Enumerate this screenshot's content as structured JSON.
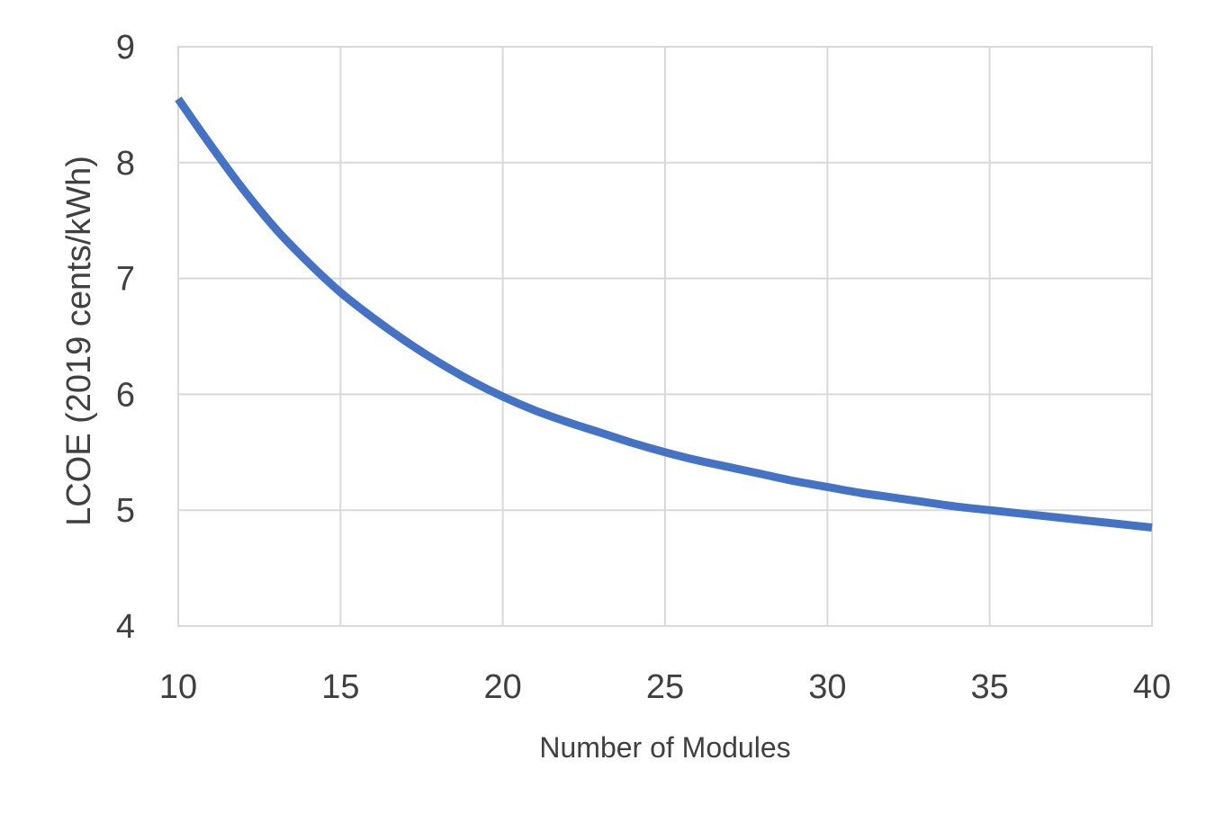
{
  "chart_data": {
    "type": "line",
    "title": "",
    "xlabel": "Number of Modules",
    "ylabel": "LCOE (2019 cents/kWh)",
    "xlim": [
      10,
      40
    ],
    "ylim": [
      4,
      9
    ],
    "x_ticks": [
      10,
      15,
      20,
      25,
      30,
      35,
      40
    ],
    "y_ticks": [
      4,
      5,
      6,
      7,
      8,
      9
    ],
    "grid": true,
    "legend": "none",
    "series": [
      {
        "color": "#4472c4",
        "x": [
          10,
          11,
          12,
          13,
          14,
          15,
          16,
          17,
          18,
          19,
          20,
          21,
          22,
          23,
          24,
          25,
          26,
          27,
          28,
          29,
          30,
          31,
          32,
          33,
          34,
          35,
          36,
          37,
          38,
          39,
          40
        ],
        "y": [
          8.55,
          8.15,
          7.77,
          7.43,
          7.14,
          6.88,
          6.66,
          6.46,
          6.28,
          6.12,
          5.98,
          5.86,
          5.76,
          5.67,
          5.58,
          5.5,
          5.43,
          5.37,
          5.31,
          5.25,
          5.2,
          5.15,
          5.11,
          5.07,
          5.03,
          5.0,
          4.97,
          4.94,
          4.91,
          4.88,
          4.85
        ]
      }
    ]
  }
}
